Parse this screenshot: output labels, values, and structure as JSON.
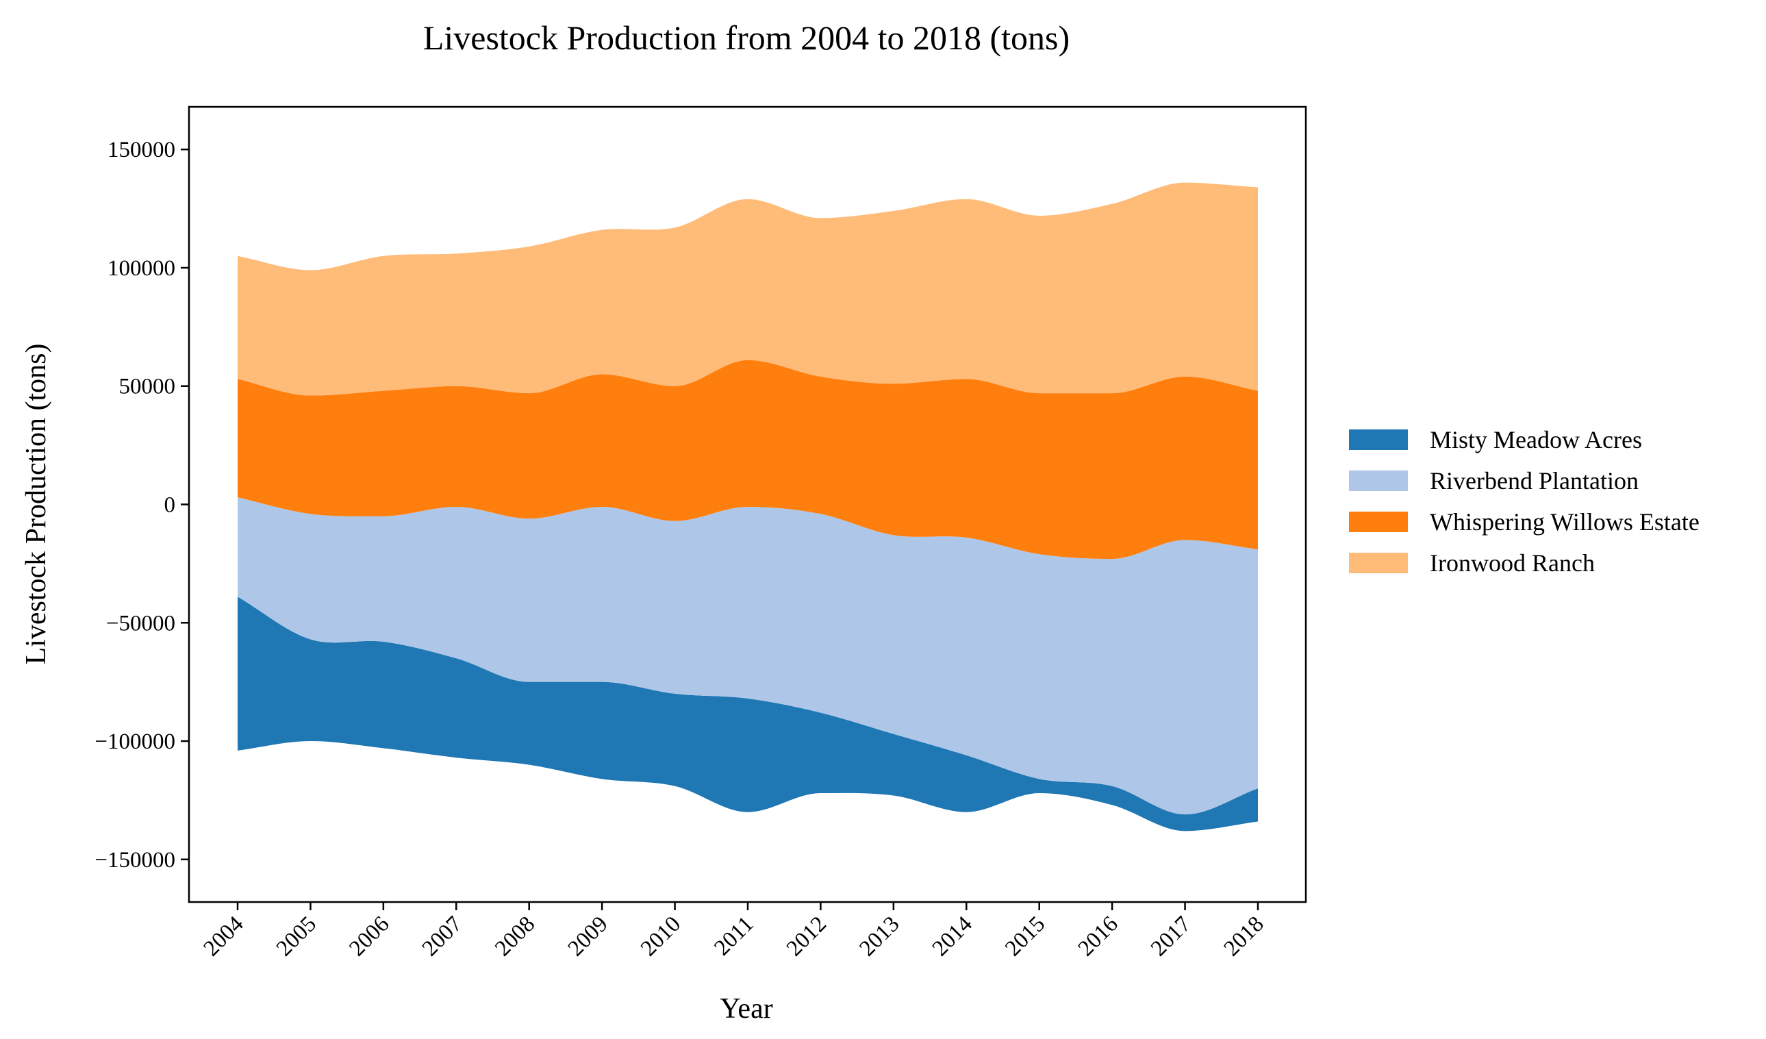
{
  "chart_data": {
    "type": "area",
    "subtype": "streamgraph",
    "title": "Livestock Production from 2004 to 2018 (tons)",
    "xlabel": "Year",
    "ylabel": "Livestock Production (tons)",
    "categories": [
      "2004",
      "2005",
      "2006",
      "2007",
      "2008",
      "2009",
      "2010",
      "2011",
      "2012",
      "2013",
      "2014",
      "2015",
      "2016",
      "2017",
      "2018"
    ],
    "ylim": [
      -168000,
      168000
    ],
    "yticks": [
      -150000,
      -100000,
      -50000,
      0,
      50000,
      100000,
      150000
    ],
    "ytick_labels": [
      "−150000",
      "−100000",
      "−50000",
      "0",
      "50000",
      "100000",
      "150000"
    ],
    "grid": false,
    "legend_position": "right",
    "series": [
      {
        "name": "Misty Meadow Acres",
        "color": "#1f77b4",
        "values": [
          65000,
          43000,
          45000,
          42000,
          35000,
          41000,
          39000,
          48000,
          34000,
          26000,
          24000,
          6000,
          8000,
          7000,
          14000
        ]
      },
      {
        "name": "Riverbend Plantation",
        "color": "#aec7e8",
        "values": [
          42000,
          53000,
          53000,
          64000,
          69000,
          74000,
          73000,
          81000,
          84000,
          84000,
          92000,
          95000,
          96000,
          116000,
          101000
        ]
      },
      {
        "name": "Whispering Willows Estate",
        "color": "#ff7f0e",
        "values": [
          50000,
          50000,
          53000,
          51000,
          53000,
          56000,
          57000,
          62000,
          58000,
          64000,
          67000,
          68000,
          70000,
          69000,
          67000
        ]
      },
      {
        "name": "Ironwood Ranch",
        "color": "#ffbb78",
        "values": [
          52000,
          53000,
          57000,
          56000,
          62000,
          61000,
          67000,
          68000,
          67000,
          73000,
          76000,
          75000,
          80000,
          82000,
          86000
        ]
      }
    ],
    "baseline_bottom": [
      -104000,
      -100000,
      -103000,
      -107000,
      -110000,
      -116000,
      -119000,
      -130000,
      -122000,
      -123000,
      -130000,
      -122000,
      -127000,
      -138000,
      -134000
    ]
  }
}
